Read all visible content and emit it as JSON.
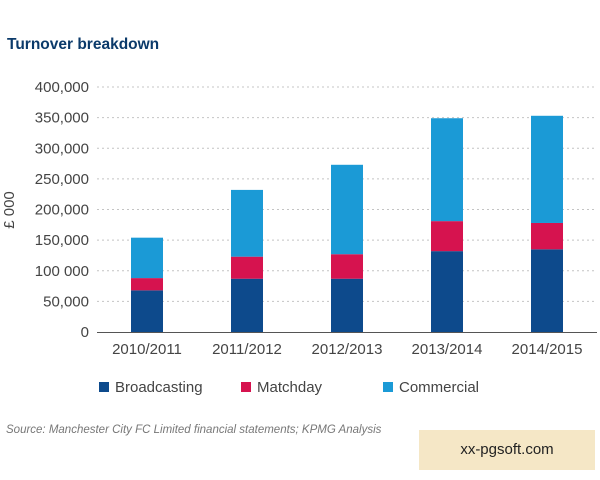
{
  "title": "Turnover breakdown",
  "source": "Source: Manchester City FC Limited financial statements; KPMG Analysis",
  "watermark": "xx-pgsoft.com",
  "chart_data": {
    "type": "bar",
    "stacked": true,
    "title": "Turnover breakdown",
    "xlabel": "",
    "ylabel": "£ 000",
    "ylim": [
      0,
      400000
    ],
    "y_ticks": [
      0,
      50000,
      100000,
      150000,
      200000,
      250000,
      300000,
      350000,
      400000
    ],
    "y_tick_labels": [
      "0",
      "50,000",
      "100 000",
      "150,000",
      "200,000",
      "250,000",
      "300,000",
      "350,000",
      "400,000"
    ],
    "grid": "horizontal dotted",
    "legend": "bottom",
    "categories": [
      "2010/2011",
      "2011/2012",
      "2012/2013",
      "2013/2014",
      "2014/2015"
    ],
    "series": [
      {
        "name": "Broadcasting",
        "color": "#0d4a8c",
        "values": [
          68000,
          87000,
          87000,
          132000,
          135000
        ]
      },
      {
        "name": "Matchday",
        "color": "#d6134f",
        "values": [
          20000,
          36000,
          40000,
          49000,
          43000
        ]
      },
      {
        "name": "Commercial",
        "color": "#1b9ad6",
        "values": [
          66000,
          109000,
          146000,
          168000,
          175000
        ]
      }
    ]
  }
}
